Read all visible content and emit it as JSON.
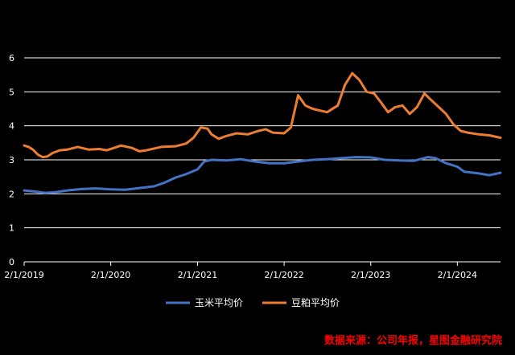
{
  "chart_data": {
    "type": "line",
    "title": "",
    "xlabel": "",
    "ylabel": "",
    "ylim": [
      0,
      6
    ],
    "yticks": [
      "0",
      "1",
      "2",
      "3",
      "4",
      "5",
      "6"
    ],
    "xticks": [
      {
        "label": "2/1/2019",
        "x": "2019-02-01"
      },
      {
        "label": "2/1/2020",
        "x": "2020-02-01"
      },
      {
        "label": "2/1/2021",
        "x": "2021-02-01"
      },
      {
        "label": "2/1/2022",
        "x": "2022-02-01"
      },
      {
        "label": "2/1/2023",
        "x": "2023-02-01"
      },
      {
        "label": "2/1/2024",
        "x": "2024-02-01"
      }
    ],
    "grid": "horizontal",
    "legend_position": "bottom",
    "colors": {
      "corn": "#4472C4",
      "soymeal": "#ED7D31",
      "grid": "#FFFFFF",
      "text": "#FFFFFF",
      "source": "#FF0000"
    },
    "series": [
      {
        "name": "玉米平均价",
        "color": "#4472C4",
        "points": [
          [
            "2019-02-01",
            2.1
          ],
          [
            "2019-03-15",
            2.07
          ],
          [
            "2019-05-01",
            2.03
          ],
          [
            "2019-06-15",
            2.05
          ],
          [
            "2019-08-01",
            2.1
          ],
          [
            "2019-10-01",
            2.14
          ],
          [
            "2019-12-01",
            2.16
          ],
          [
            "2020-02-01",
            2.13
          ],
          [
            "2020-04-01",
            2.12
          ],
          [
            "2020-06-01",
            2.17
          ],
          [
            "2020-08-01",
            2.22
          ],
          [
            "2020-09-15",
            2.33
          ],
          [
            "2020-11-01",
            2.48
          ],
          [
            "2020-12-15",
            2.58
          ],
          [
            "2021-02-01",
            2.72
          ],
          [
            "2021-03-01",
            2.95
          ],
          [
            "2021-04-01",
            3.0
          ],
          [
            "2021-06-01",
            2.98
          ],
          [
            "2021-08-01",
            3.02
          ],
          [
            "2021-10-01",
            2.95
          ],
          [
            "2021-12-01",
            2.9
          ],
          [
            "2022-02-01",
            2.9
          ],
          [
            "2022-04-01",
            2.95
          ],
          [
            "2022-06-01",
            3.0
          ],
          [
            "2022-08-01",
            3.02
          ],
          [
            "2022-10-01",
            3.05
          ],
          [
            "2022-12-01",
            3.08
          ],
          [
            "2023-02-01",
            3.07
          ],
          [
            "2023-04-01",
            3.0
          ],
          [
            "2023-06-01",
            2.98
          ],
          [
            "2023-08-01",
            2.97
          ],
          [
            "2023-10-01",
            3.08
          ],
          [
            "2023-11-01",
            3.05
          ],
          [
            "2023-12-15",
            2.9
          ],
          [
            "2024-02-01",
            2.8
          ],
          [
            "2024-03-01",
            2.65
          ],
          [
            "2024-05-01",
            2.6
          ],
          [
            "2024-06-15",
            2.55
          ],
          [
            "2024-08-01",
            2.62
          ]
        ]
      },
      {
        "name": "豆粕平均价",
        "color": "#ED7D31",
        "points": [
          [
            "2019-02-01",
            3.42
          ],
          [
            "2019-02-20",
            3.38
          ],
          [
            "2019-03-10",
            3.3
          ],
          [
            "2019-04-01",
            3.15
          ],
          [
            "2019-04-20",
            3.08
          ],
          [
            "2019-05-10",
            3.1
          ],
          [
            "2019-06-01",
            3.2
          ],
          [
            "2019-07-01",
            3.28
          ],
          [
            "2019-08-01",
            3.3
          ],
          [
            "2019-09-15",
            3.38
          ],
          [
            "2019-11-01",
            3.3
          ],
          [
            "2019-12-15",
            3.32
          ],
          [
            "2020-01-15",
            3.28
          ],
          [
            "2020-02-15",
            3.35
          ],
          [
            "2020-03-15",
            3.42
          ],
          [
            "2020-05-01",
            3.35
          ],
          [
            "2020-06-01",
            3.25
          ],
          [
            "2020-07-01",
            3.28
          ],
          [
            "2020-09-01",
            3.38
          ],
          [
            "2020-11-01",
            3.4
          ],
          [
            "2020-12-15",
            3.48
          ],
          [
            "2021-01-15",
            3.65
          ],
          [
            "2021-02-15",
            3.95
          ],
          [
            "2021-03-15",
            3.92
          ],
          [
            "2021-04-01",
            3.75
          ],
          [
            "2021-05-01",
            3.62
          ],
          [
            "2021-06-01",
            3.7
          ],
          [
            "2021-07-15",
            3.78
          ],
          [
            "2021-09-01",
            3.75
          ],
          [
            "2021-10-15",
            3.85
          ],
          [
            "2021-11-15",
            3.9
          ],
          [
            "2021-12-15",
            3.8
          ],
          [
            "2022-02-01",
            3.78
          ],
          [
            "2022-03-01",
            3.95
          ],
          [
            "2022-04-01",
            4.9
          ],
          [
            "2022-05-01",
            4.6
          ],
          [
            "2022-06-01",
            4.5
          ],
          [
            "2022-07-01",
            4.45
          ],
          [
            "2022-08-01",
            4.4
          ],
          [
            "2022-09-15",
            4.6
          ],
          [
            "2022-10-15",
            5.2
          ],
          [
            "2022-11-15",
            5.55
          ],
          [
            "2022-12-15",
            5.35
          ],
          [
            "2023-01-15",
            5.0
          ],
          [
            "2023-02-15",
            4.95
          ],
          [
            "2023-03-15",
            4.7
          ],
          [
            "2023-04-15",
            4.4
          ],
          [
            "2023-05-15",
            4.55
          ],
          [
            "2023-06-15",
            4.6
          ],
          [
            "2023-07-15",
            4.35
          ],
          [
            "2023-08-15",
            4.55
          ],
          [
            "2023-09-15",
            4.95
          ],
          [
            "2023-10-15",
            4.75
          ],
          [
            "2023-11-15",
            4.55
          ],
          [
            "2023-12-15",
            4.35
          ],
          [
            "2024-01-15",
            4.05
          ],
          [
            "2024-02-15",
            3.85
          ],
          [
            "2024-03-15",
            3.8
          ],
          [
            "2024-05-01",
            3.75
          ],
          [
            "2024-06-15",
            3.72
          ],
          [
            "2024-08-01",
            3.65
          ]
        ]
      }
    ]
  },
  "source_note": "数据来源：公司年报，星图金融研究院"
}
